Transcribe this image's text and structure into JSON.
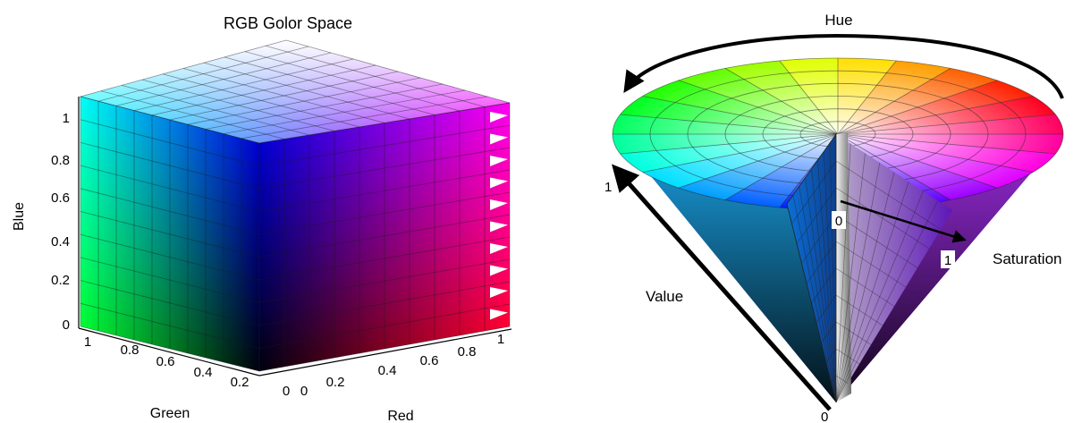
{
  "rgb": {
    "title": "RGB Golor Space",
    "axes": {
      "blue": {
        "label": "Blue",
        "ticks": [
          "0",
          "0.2",
          "0.4",
          "0.6",
          "0.8",
          "1"
        ]
      },
      "green": {
        "label": "Green",
        "ticks": [
          "1",
          "0.8",
          "0.6",
          "0.4",
          "0.2",
          "0"
        ]
      },
      "red": {
        "label": "Red",
        "ticks": [
          "0",
          "0.2",
          "0.4",
          "0.6",
          "0.8",
          "1"
        ]
      }
    }
  },
  "hsv": {
    "labels": {
      "hue": "Hue",
      "saturation": "Saturation",
      "value": "Value"
    },
    "markers": {
      "value_top": "1",
      "value_bottom": "0",
      "sat_start": "0",
      "sat_end": "1"
    }
  }
}
